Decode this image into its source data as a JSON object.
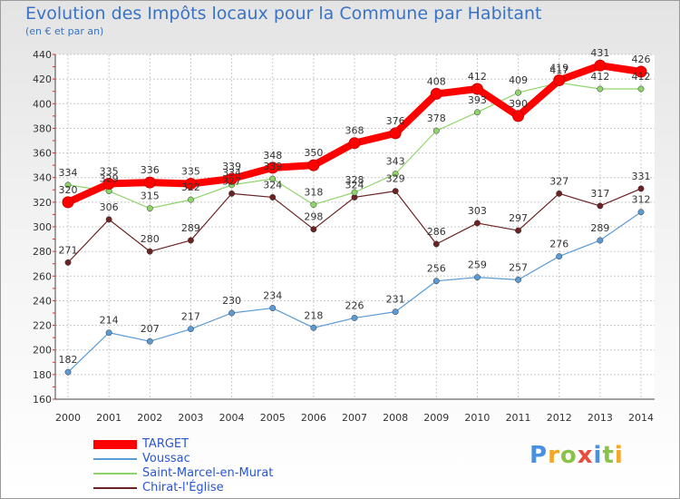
{
  "header": {
    "title": "Evolution des Impôts locaux pour la Commune par Habitant",
    "subtitle": "(en € et par an)"
  },
  "chart_data": {
    "type": "line",
    "title": "Evolution des Impôts locaux pour la Commune par Habitant",
    "subtitle": "(en € et par an)",
    "xlabel": "",
    "ylabel": "",
    "x": [
      "2000",
      "2001",
      "2002",
      "2003",
      "2004",
      "2005",
      "2006",
      "2007",
      "2008",
      "2009",
      "2010",
      "2011",
      "2012",
      "2013",
      "2014"
    ],
    "ylim": [
      160,
      440
    ],
    "yticks": [
      160,
      180,
      200,
      220,
      240,
      260,
      280,
      300,
      320,
      340,
      360,
      380,
      400,
      420,
      440
    ],
    "grid": true,
    "legend_position": "bottom-left",
    "series": [
      {
        "name": "TARGET",
        "color": "#ff0000",
        "values": [
          320,
          335,
          336,
          335,
          339,
          348,
          350,
          368,
          376,
          408,
          412,
          390,
          419,
          431,
          426
        ]
      },
      {
        "name": "Voussac",
        "color": "#5b9bd5",
        "values": [
          182,
          214,
          207,
          217,
          230,
          234,
          218,
          226,
          231,
          256,
          259,
          257,
          276,
          289,
          312
        ]
      },
      {
        "name": "Saint-Marcel-en-Murat",
        "color": "#8fd46a",
        "values": [
          334,
          329,
          315,
          322,
          334,
          339,
          318,
          328,
          343,
          378,
          393,
          409,
          417,
          412,
          412
        ]
      },
      {
        "name": "Chirat-l'Église",
        "color": "#6b2222",
        "values": [
          271,
          306,
          280,
          289,
          327,
          324,
          298,
          324,
          329,
          286,
          303,
          297,
          327,
          317,
          331
        ]
      }
    ]
  },
  "logo": {
    "text": "Proxiti",
    "colors": [
      "#4a90e2",
      "#f5a623",
      "#8bc34a",
      "#e94e3c",
      "#4a90e2",
      "#8bc34a",
      "#f5a623"
    ]
  }
}
